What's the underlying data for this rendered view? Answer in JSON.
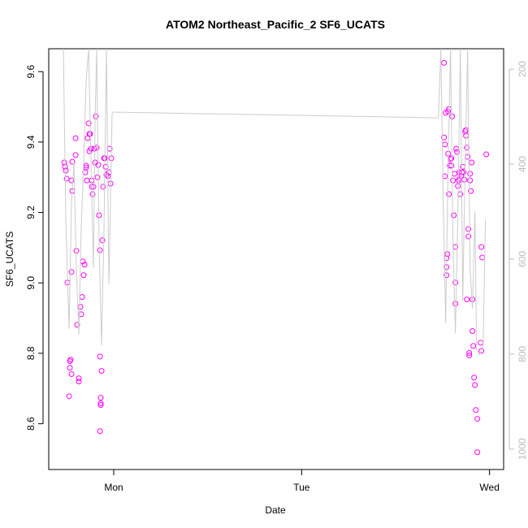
{
  "chart_data": {
    "type": "scatter",
    "title": "ATOM2 Northeast_Pacific_2 SF6_UCATS",
    "x_label": "Date",
    "y_label": "SF6_UCATS",
    "xlim": [
      -8.3,
      49.8
    ],
    "xticks": [
      {
        "value": 0,
        "label": "Mon"
      },
      {
        "value": 24,
        "label": "Tue"
      },
      {
        "value": 48,
        "label": "Wed"
      }
    ],
    "ylim": [
      8.47,
      9.665
    ],
    "yticks": [
      8.6,
      8.8,
      {
        "value": 9,
        "label": "9.0"
      },
      9.2,
      9.4,
      9.6
    ],
    "y2lim": [
      1043,
      157
    ],
    "y2ticks": [
      200,
      400,
      600,
      800,
      1000
    ],
    "y2_color": "#bbbbbb",
    "series": [
      {
        "name": "SF6_UCATS",
        "color": "#ff00ff",
        "x": [
          -6.32,
          -6.22,
          -6.12,
          -6.01,
          -5.91,
          -5.7,
          -5.6,
          -5.6,
          -5.5,
          -5.39,
          -5.39,
          -5.39,
          -5.29,
          -5.29,
          -4.87,
          -4.87,
          -4.77,
          -4.67,
          -4.46,
          -4.46,
          -4.25,
          -4.15,
          -4.04,
          -3.94,
          -3.84,
          -3.73,
          -3.63,
          -3.52,
          -3.52,
          -3.42,
          -3.32,
          -3.21,
          -3.11,
          -3.11,
          -3.01,
          -2.9,
          -2.8,
          -2.8,
          -2.7,
          -2.59,
          -2.49,
          -2.38,
          -2.28,
          -2.18,
          -2.07,
          -1.97,
          -1.87,
          -1.76,
          -1.76,
          -1.66,
          -1.66,
          -1.66,
          -1.76,
          -1.55,
          -1.45,
          -1.35,
          -1.24,
          -1.14,
          -1.04,
          -0.93,
          -0.73,
          -0.62,
          -0.52,
          -0.41,
          -0.31,
          42.19,
          42.19,
          42.3,
          42.3,
          42.4,
          42.5,
          42.5,
          42.5,
          42.61,
          42.71,
          42.71,
          42.82,
          42.82,
          42.92,
          43.02,
          43.13,
          43.13,
          43.23,
          43.33,
          43.44,
          43.54,
          43.64,
          43.64,
          43.64,
          43.75,
          43.85,
          43.96,
          44.06,
          44.16,
          44.16,
          44.27,
          44.37,
          44.48,
          44.58,
          44.68,
          44.79,
          44.89,
          44.99,
          44.99,
          45.1,
          45.1,
          45.2,
          45.3,
          45.3,
          45.41,
          45.41,
          45.51,
          45.51,
          45.61,
          45.72,
          45.82,
          45.82,
          45.93,
          46.03,
          46.13,
          46.24,
          46.44,
          46.44,
          46.86,
          46.96,
          46.96,
          47.07,
          47.58
        ],
        "values": [
          9.342,
          9.33,
          9.319,
          9.296,
          9.001,
          8.678,
          8.778,
          8.759,
          8.782,
          8.741,
          9.031,
          9.291,
          9.261,
          9.344,
          9.411,
          9.363,
          9.091,
          8.881,
          8.729,
          8.72,
          8.932,
          8.911,
          8.96,
          9.061,
          9.022,
          9.052,
          9.314,
          9.328,
          9.333,
          9.291,
          9.411,
          9.453,
          9.423,
          9.374,
          9.423,
          9.381,
          9.273,
          9.291,
          9.252,
          9.273,
          9.381,
          9.342,
          9.473,
          9.384,
          9.3,
          9.335,
          9.192,
          9.093,
          8.791,
          8.674,
          8.658,
          8.653,
          8.579,
          8.75,
          9.121,
          9.273,
          9.354,
          9.354,
          9.33,
          9.307,
          9.303,
          9.314,
          9.381,
          9.282,
          9.354,
          9.625,
          9.413,
          9.303,
          9.393,
          9.483,
          9.07,
          9.045,
          9.022,
          9.082,
          9.487,
          9.367,
          9.494,
          9.252,
          9.333,
          9.351,
          9.354,
          9.333,
          9.473,
          9.291,
          9.192,
          9.31,
          9.102,
          9.001,
          8.941,
          9.381,
          9.372,
          9.275,
          9.291,
          9.314,
          9.296,
          9.252,
          9.303,
          9.314,
          9.33,
          9.314,
          9.293,
          9.43,
          9.418,
          9.434,
          9.384,
          8.953,
          9.358,
          9.153,
          9.132,
          8.801,
          8.794,
          9.31,
          9.291,
          9.261,
          9.342,
          8.863,
          8.953,
          8.821,
          8.731,
          8.71,
          8.639,
          8.614,
          8.519,
          8.83,
          8.807,
          9.102,
          9.072,
          9.365
        ]
      },
      {
        "type": "line",
        "axis": "y2",
        "color": "#cccccc",
        "x": [
          -6.43,
          -6.12,
          -5.7,
          -5.39,
          -5.08,
          -4.77,
          -4.46,
          -4.15,
          -3.84,
          -3.52,
          -3.21,
          -2.9,
          -2.59,
          -2.38,
          -2.18,
          -1.87,
          -1.55,
          -1.24,
          -0.93,
          -0.62,
          -0.41,
          -0.21,
          0,
          41.47,
          41.78,
          42.09,
          42.4,
          42.71,
          43.02,
          43.33,
          43.64,
          43.96,
          44.27,
          44.58,
          44.89,
          45.2,
          45.51,
          45.82,
          46.13,
          46.34,
          46.65,
          47.17,
          47.48
        ],
        "values": [
          157.2,
          516.1,
          746.8,
          482.0,
          396.5,
          618.7,
          758.8,
          533.2,
          396.5,
          225.6,
          157.2,
          396.5,
          618.7,
          311.1,
          157.2,
          567.4,
          781.0,
          533.2,
          157.2,
          652.9,
          482.0,
          294.0,
          290.5,
          302.5,
          157.2,
          482.0,
          734.9,
          396.5,
          157.2,
          567.4,
          755.4,
          499.0,
          157.2,
          687.0,
          396.5,
          157.2,
          618.7,
          704.1,
          499.0,
          789.6,
          801.5,
          789.6,
          516.1
        ]
      }
    ]
  }
}
